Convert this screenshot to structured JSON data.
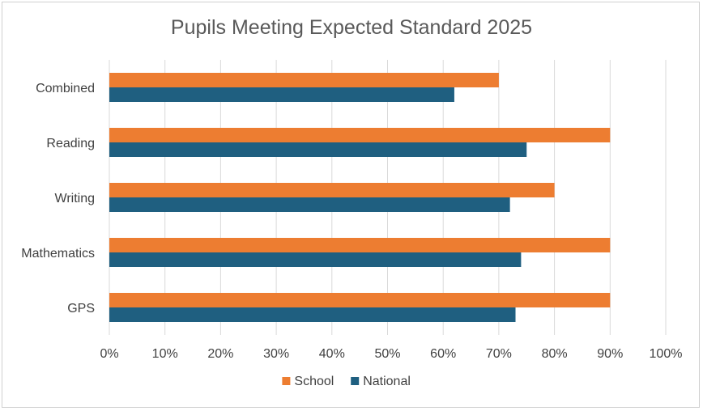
{
  "chart_data": {
    "type": "bar",
    "orientation": "horizontal",
    "title": "Pupils Meeting Expected Standard 2025",
    "categories": [
      "Combined",
      "Reading",
      "Writing",
      "Mathematics",
      "GPS"
    ],
    "series": [
      {
        "name": "School",
        "color": "#ED7D31",
        "values": [
          70,
          90,
          80,
          90,
          90
        ]
      },
      {
        "name": "National",
        "color": "#1F5F80",
        "values": [
          62,
          75,
          72,
          74,
          73
        ]
      }
    ],
    "xlim": [
      0,
      100
    ],
    "x_ticks": [
      "0%",
      "10%",
      "20%",
      "30%",
      "40%",
      "50%",
      "60%",
      "70%",
      "80%",
      "90%",
      "100%"
    ],
    "grid": true,
    "legend_position": "bottom"
  }
}
